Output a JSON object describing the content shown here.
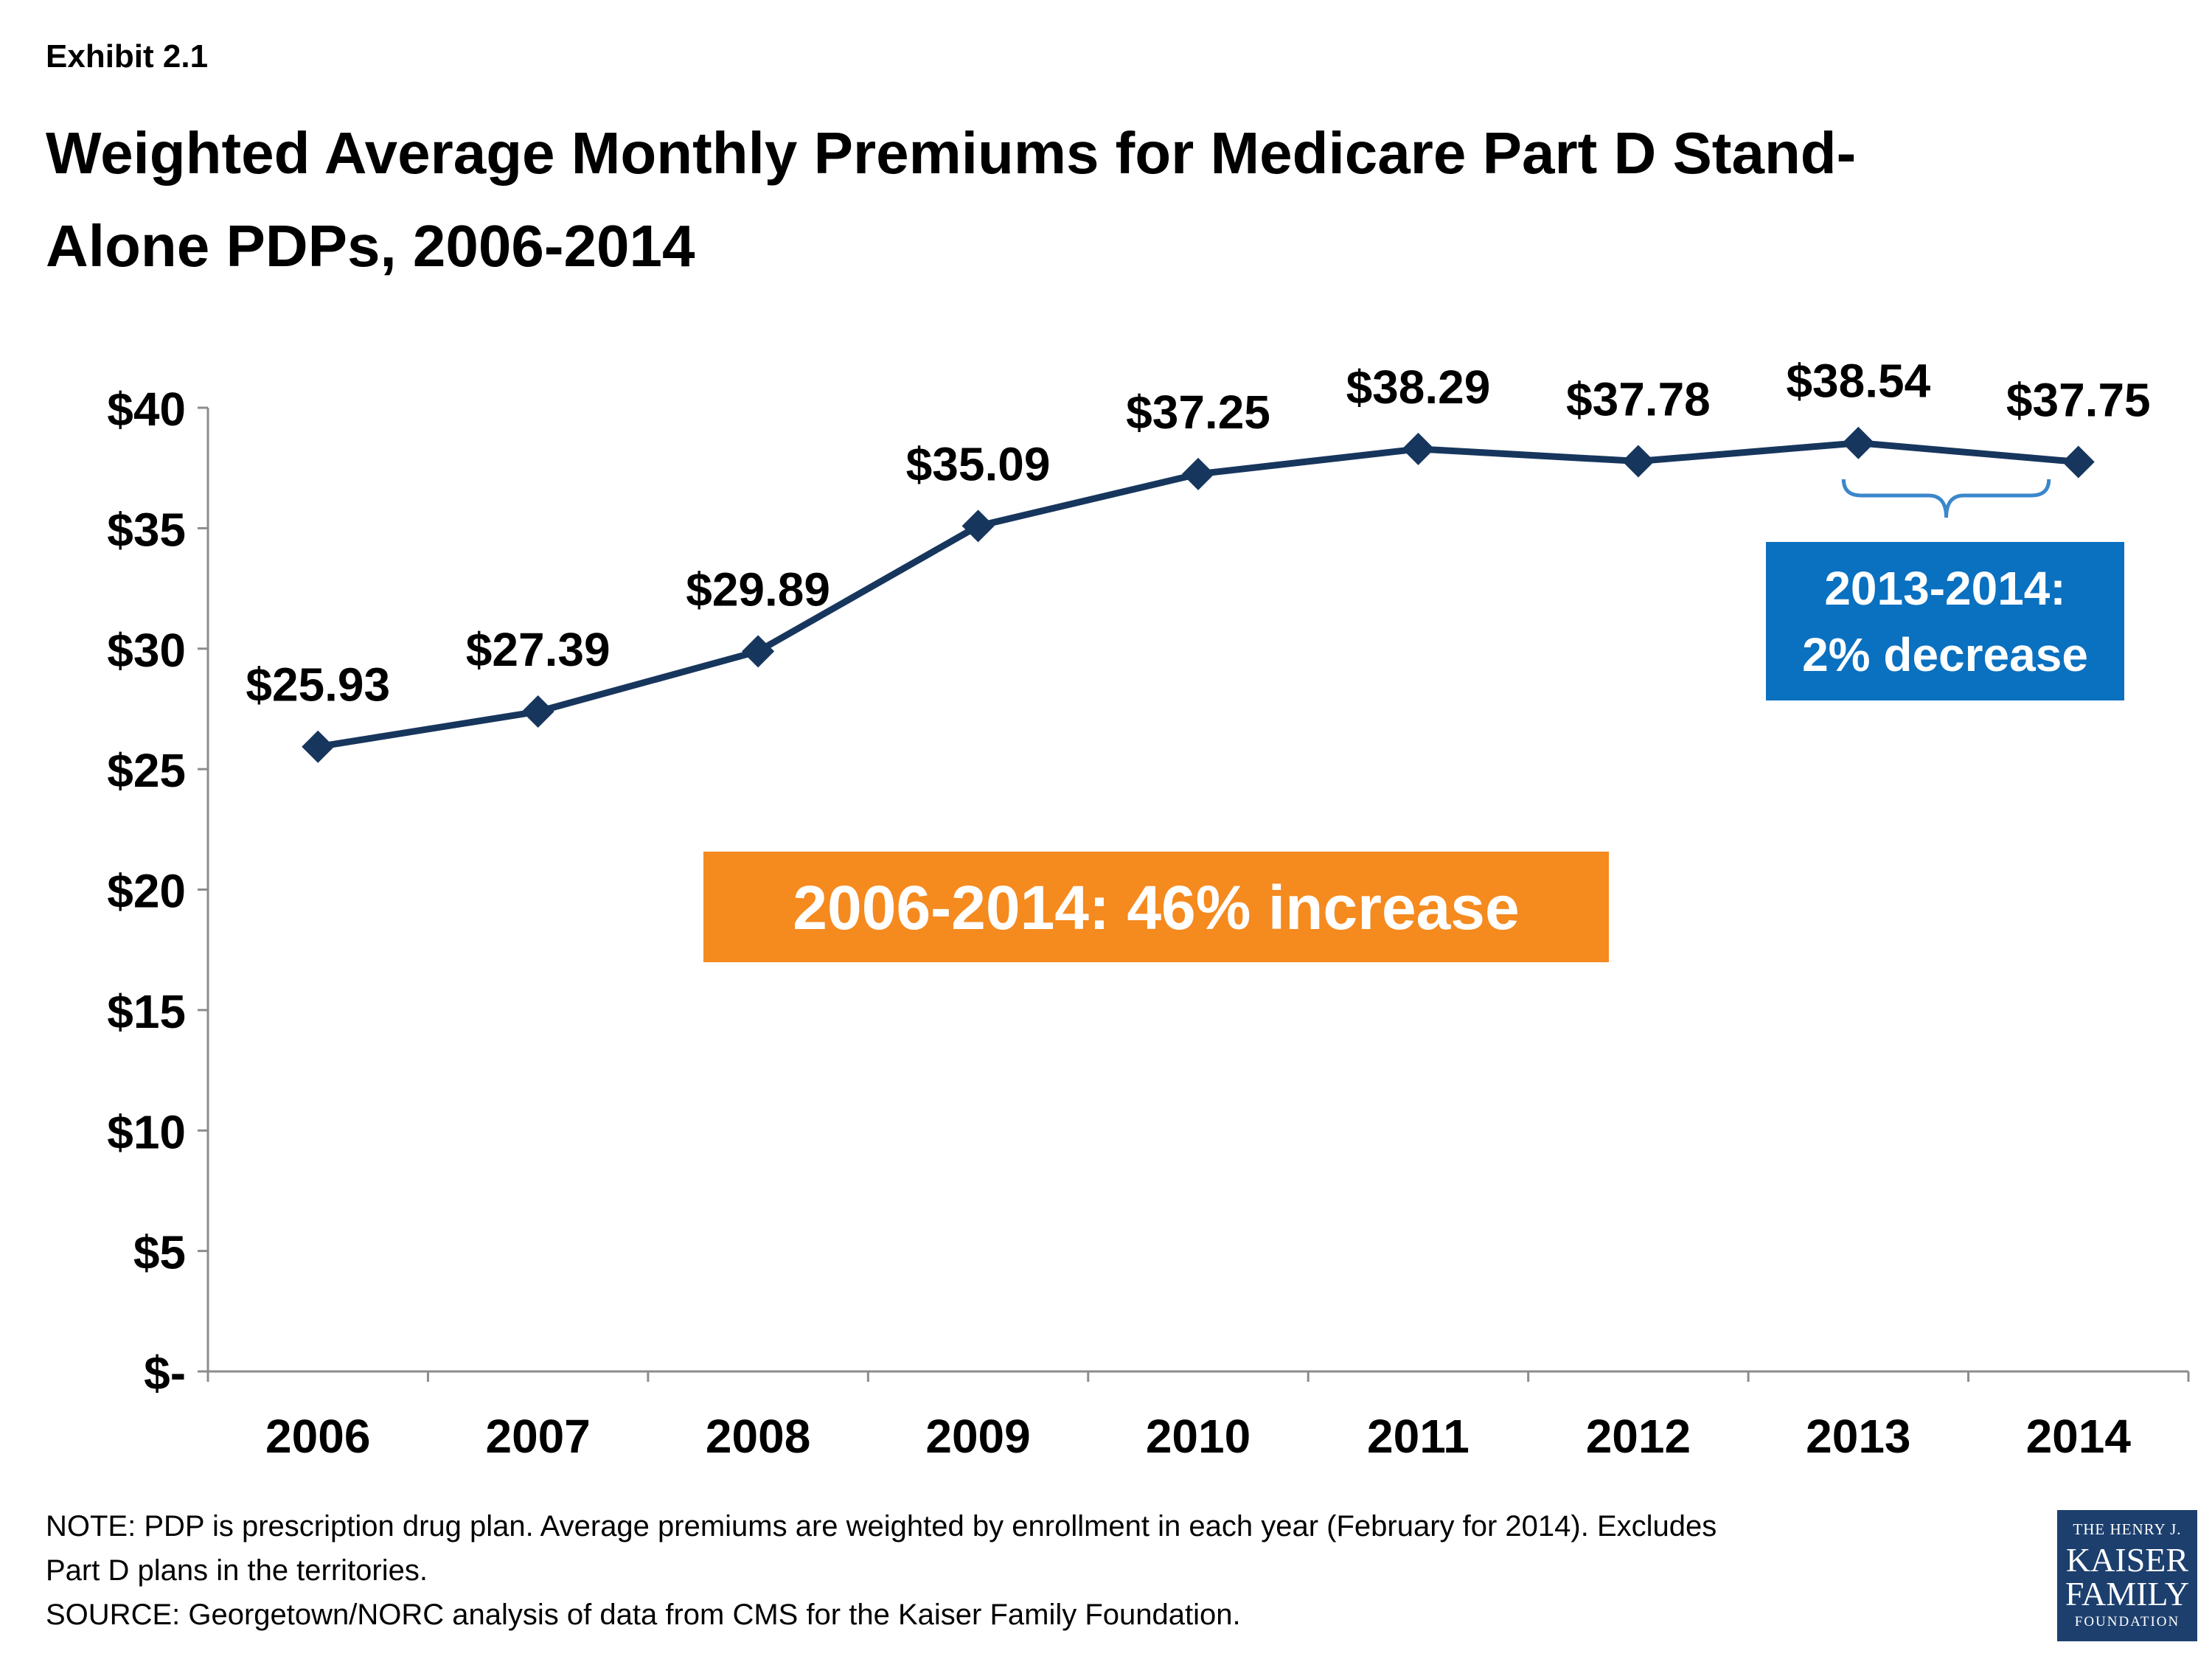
{
  "header": {
    "exhibit": "Exhibit 2.1",
    "title": "Weighted Average Monthly Premiums for Medicare Part D Stand-Alone PDPs, 2006-2014"
  },
  "chart_data": {
    "type": "line",
    "title": "Weighted Average Monthly Premiums for Medicare Part D Stand-Alone PDPs, 2006-2014",
    "categories": [
      "2006",
      "2007",
      "2008",
      "2009",
      "2010",
      "2011",
      "2012",
      "2013",
      "2014"
    ],
    "series": [
      {
        "values": [
          25.93,
          27.39,
          29.89,
          35.09,
          37.25,
          38.29,
          37.78,
          38.54,
          37.75
        ],
        "labels": [
          "$25.93",
          "$27.39",
          "$29.89",
          "$35.09",
          "$37.25",
          "$38.29",
          "$37.78",
          "$38.54",
          "$37.75"
        ],
        "color": "#17365d"
      }
    ],
    "ylim": [
      0,
      40
    ],
    "yticks": [
      0,
      5,
      10,
      15,
      20,
      25,
      30,
      35,
      40
    ],
    "ytick_labels": [
      "$-",
      "$5",
      "$10",
      "$15",
      "$20",
      "$25",
      "$30",
      "$35",
      "$40"
    ],
    "grid": false,
    "legend": "none",
    "annotations": [
      {
        "id": "total",
        "text": "2006-2014:  46% increase",
        "color": "#f58a1f"
      },
      {
        "id": "recent",
        "lines": [
          "2013-2014:",
          "2% decrease"
        ],
        "color": "#0a70c0",
        "brace_color": "#3a87cc"
      }
    ]
  },
  "footer": {
    "notes": [
      "NOTE: PDP is prescription drug plan. Average premiums are weighted by enrollment in each year (February for 2014).  Excludes",
      "Part D plans in the territories.",
      "SOURCE: Georgetown/NORC analysis of data from CMS for the Kaiser Family Foundation."
    ],
    "logo_lines": [
      "THE HENRY J.",
      "KAISER",
      "FAMILY",
      "FOUNDATION"
    ]
  }
}
